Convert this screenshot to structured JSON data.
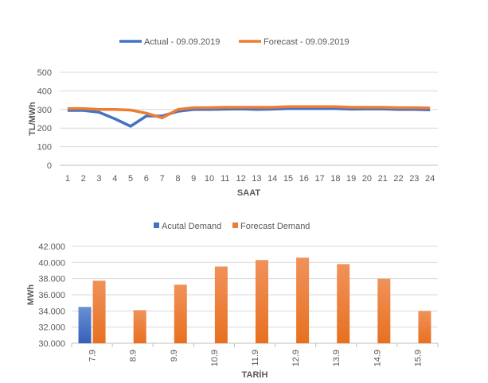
{
  "chart_data": [
    {
      "type": "line",
      "title": "",
      "xlabel": "SAAT",
      "ylabel": "TL/MWh",
      "ylim": [
        0,
        500
      ],
      "yticks": [
        0,
        100,
        200,
        300,
        400,
        500
      ],
      "x": [
        1,
        2,
        3,
        4,
        5,
        6,
        7,
        8,
        9,
        10,
        11,
        12,
        13,
        14,
        15,
        16,
        17,
        18,
        19,
        20,
        21,
        22,
        23,
        24
      ],
      "legend_position": "top",
      "grid": true,
      "series": [
        {
          "name": "Actual - 09.09.2019",
          "color": "#4472C4",
          "values": [
            295,
            295,
            285,
            250,
            210,
            265,
            265,
            290,
            300,
            300,
            302,
            303,
            300,
            302,
            305,
            305,
            305,
            305,
            302,
            303,
            303,
            300,
            300,
            298
          ]
        },
        {
          "name": "Forecast - 09.09.2019",
          "color": "#ED7D31",
          "values": [
            305,
            305,
            300,
            300,
            297,
            280,
            255,
            300,
            310,
            310,
            312,
            312,
            312,
            312,
            315,
            315,
            315,
            315,
            312,
            312,
            312,
            310,
            310,
            308
          ]
        }
      ]
    },
    {
      "type": "bar",
      "title": "",
      "xlabel": "TARİH",
      "ylabel": "MWh",
      "ylim": [
        30000,
        42000
      ],
      "yticks": [
        "30.000",
        "32.000",
        "34.000",
        "36.000",
        "38.000",
        "40.000",
        "42.000"
      ],
      "categories": [
        "7.9",
        "8.9",
        "9.9",
        "10.9",
        "11.9",
        "12.9",
        "13.9",
        "14.9",
        "15.9"
      ],
      "legend_position": "top",
      "grid": true,
      "series": [
        {
          "name": "Acutal Demand",
          "color": "#4472C4",
          "values": [
            34500,
            null,
            null,
            null,
            null,
            null,
            null,
            null,
            null
          ]
        },
        {
          "name": "Forecast Demand",
          "color": "#ED7D31",
          "values": [
            37750,
            34100,
            37250,
            39500,
            40300,
            40600,
            39800,
            38000,
            34000
          ]
        }
      ]
    }
  ]
}
